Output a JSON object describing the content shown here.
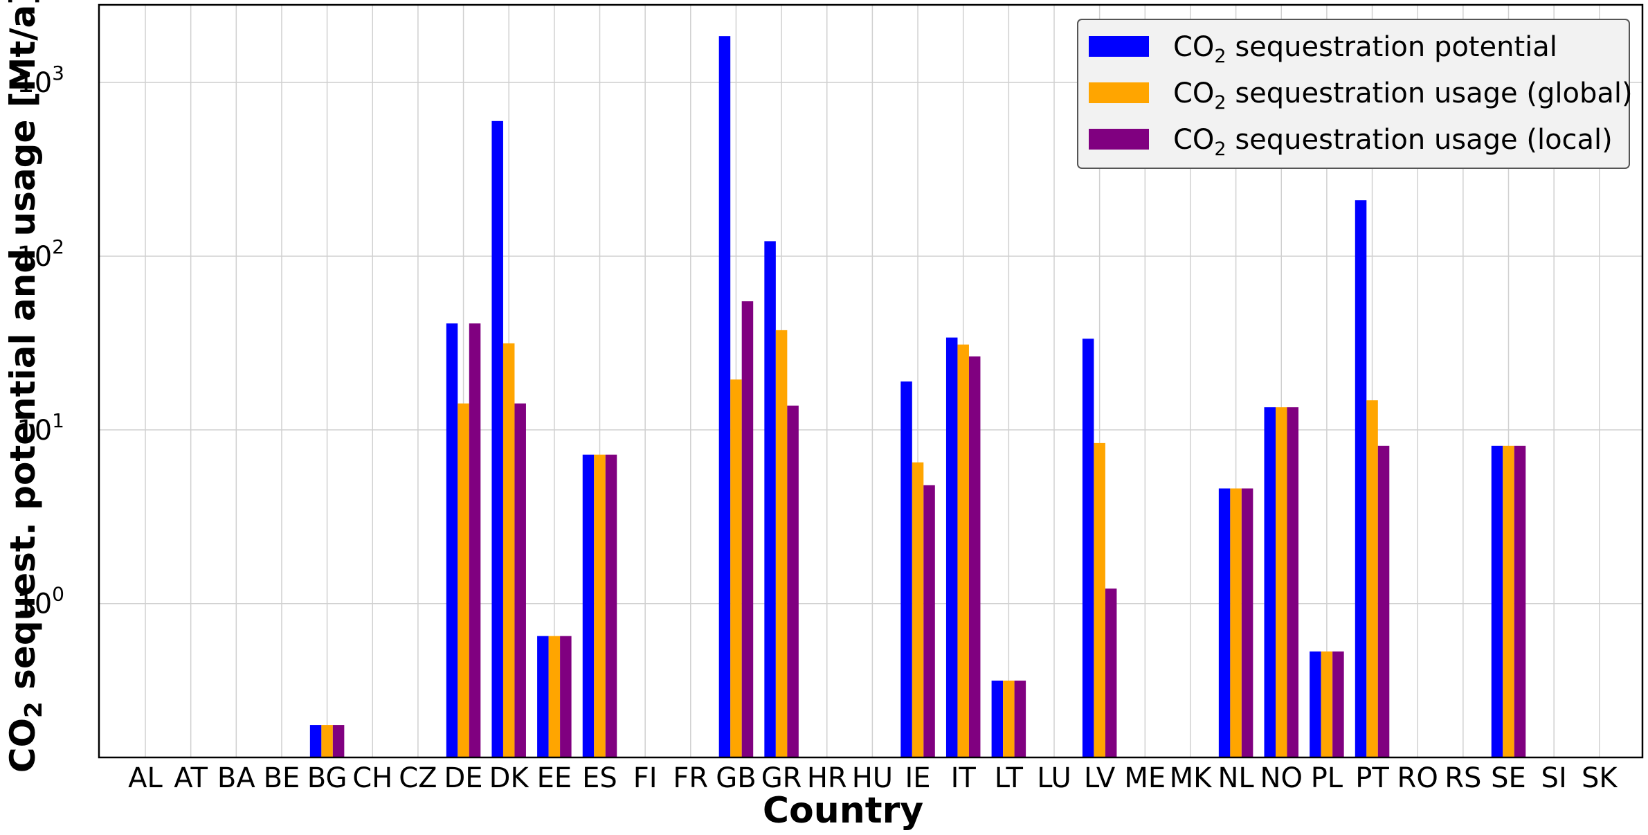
{
  "chart_data": {
    "type": "bar",
    "scale": "log",
    "xlabel": "Country",
    "ylabel_prefix": "CO",
    "ylabel_sub": "2",
    "ylabel_rest": " sequest. potential and usage [Mt/a]",
    "ylim": [
      0.13,
      2800
    ],
    "grid": true,
    "legend_position": "top-right",
    "y_ticks": [
      {
        "base": "10",
        "exp": "0",
        "value": 1
      },
      {
        "base": "10",
        "exp": "1",
        "value": 10
      },
      {
        "base": "10",
        "exp": "2",
        "value": 100
      },
      {
        "base": "10",
        "exp": "3",
        "value": 1000
      }
    ],
    "categories": [
      "AL",
      "AT",
      "BA",
      "BE",
      "BG",
      "CH",
      "CZ",
      "DE",
      "DK",
      "EE",
      "ES",
      "FI",
      "FR",
      "GB",
      "GR",
      "HR",
      "HU",
      "IE",
      "IT",
      "LT",
      "LU",
      "LV",
      "ME",
      "MK",
      "NL",
      "NO",
      "PL",
      "PT",
      "RO",
      "RS",
      "SE",
      "SI",
      "SK"
    ],
    "series": [
      {
        "name_prefix": "CO",
        "name_sub": "2",
        "name_rest": " sequestration potential",
        "color": "#0000ff",
        "values": [
          0,
          0,
          0,
          0,
          0.2,
          0,
          0,
          41,
          600,
          0.65,
          7.2,
          0,
          0,
          1850,
          122,
          0,
          0,
          19,
          34,
          0.36,
          0,
          33.5,
          0,
          0,
          4.6,
          13.5,
          0.53,
          210,
          0,
          0,
          8.1,
          0,
          0
        ]
      },
      {
        "name_prefix": "CO",
        "name_sub": "2",
        "name_rest": " sequestration usage (global)",
        "color": "#ffa500",
        "values": [
          0,
          0,
          0,
          0,
          0.2,
          0,
          0,
          14.2,
          31.5,
          0.65,
          7.2,
          0,
          0,
          19.5,
          37.5,
          0,
          0,
          6.5,
          31,
          0.36,
          0,
          8.4,
          0,
          0,
          4.6,
          13.5,
          0.53,
          14.8,
          0,
          0,
          8.1,
          0,
          0
        ]
      },
      {
        "name_prefix": "CO",
        "name_sub": "2",
        "name_rest": " sequestration usage (local)",
        "color": "#800080",
        "values": [
          0,
          0,
          0,
          0,
          0.2,
          0,
          0,
          41,
          14.2,
          0.65,
          7.2,
          0,
          0,
          55,
          13.8,
          0,
          0,
          4.8,
          26.5,
          0.36,
          0,
          1.22,
          0,
          0,
          4.6,
          13.5,
          0.53,
          8.1,
          0,
          0,
          8.1,
          0,
          0
        ]
      }
    ]
  }
}
